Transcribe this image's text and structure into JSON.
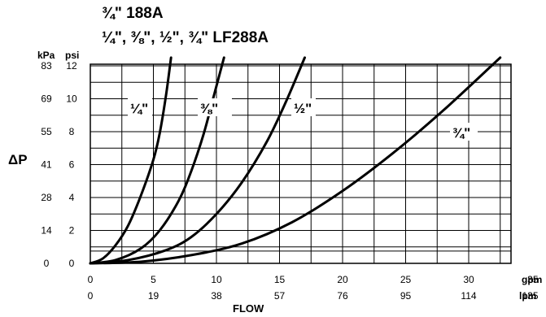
{
  "chart_data": {
    "type": "line",
    "title": "¾\" 188A",
    "subtitle": "¼\", ⅜\", ½\", ¾\" LF288A",
    "xlabel": "FLOW",
    "ylabel": "ΔP",
    "x_units": {
      "primary": "gpm",
      "secondary": "lpm"
    },
    "y_units": {
      "primary": "psi",
      "secondary": "kPa"
    },
    "x_ticks_gpm": [
      "0",
      "5",
      "10",
      "15",
      "20",
      "25",
      "30",
      "35"
    ],
    "x_ticks_lpm": [
      "0",
      "19",
      "38",
      "57",
      "76",
      "95",
      "114",
      "135"
    ],
    "y_ticks_psi": [
      "0",
      "2",
      "4",
      "6",
      "8",
      "10",
      "12"
    ],
    "y_ticks_kpa": [
      "0",
      "14",
      "28",
      "41",
      "55",
      "69",
      "83"
    ],
    "xlim": [
      0,
      35
    ],
    "ylim": [
      0,
      12.5
    ],
    "grid": true,
    "series": [
      {
        "name": "¼\"",
        "x": [
          0,
          1,
          2,
          3,
          4,
          5,
          5.5,
          6,
          6.4
        ],
        "y": [
          0,
          0.3,
          1.1,
          2.3,
          4.1,
          6.3,
          7.9,
          10.2,
          12.5
        ]
      },
      {
        "name": "⅜\"",
        "x": [
          0,
          2,
          4,
          5.5,
          7,
          8,
          9,
          9.8,
          10.6
        ],
        "y": [
          0,
          0.2,
          0.9,
          2.0,
          3.8,
          5.6,
          7.9,
          10.2,
          12.5
        ]
      },
      {
        "name": "½\"",
        "x": [
          0,
          3,
          6,
          8,
          10,
          12,
          14,
          15.5,
          17
        ],
        "y": [
          0,
          0.2,
          0.8,
          1.6,
          3.0,
          4.9,
          7.4,
          9.8,
          12.5
        ]
      },
      {
        "name": "¾\"",
        "x": [
          0,
          4,
          8,
          12,
          16,
          20,
          24,
          28,
          32.5
        ],
        "y": [
          0,
          0.1,
          0.5,
          1.2,
          2.5,
          4.4,
          6.7,
          9.3,
          12.5
        ]
      }
    ]
  }
}
